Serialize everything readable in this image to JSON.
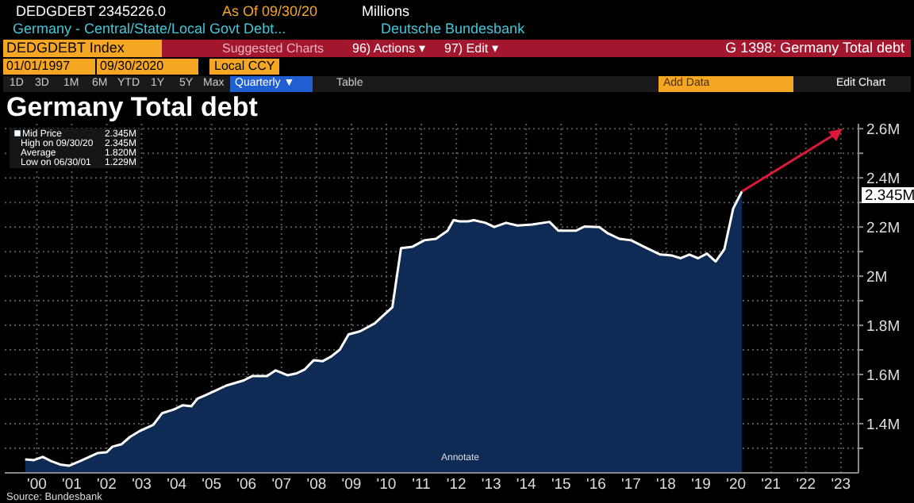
{
  "chart_data": {
    "type": "area",
    "title": "Germany Total debt",
    "x": [
      "2000-03",
      "2000-06",
      "2000-09",
      "2000-12",
      "2001-03",
      "2001-06",
      "2001-10",
      "2002-01",
      "2002-04",
      "2002-07",
      "2002-09",
      "2002-12",
      "2003-03",
      "2003-06",
      "2003-11",
      "2004-02",
      "2004-06",
      "2004-09",
      "2004-12",
      "2005-02",
      "2005-08",
      "2005-12",
      "2006-06",
      "2006-09",
      "2007-02",
      "2007-05",
      "2007-09",
      "2007-12",
      "2008-03",
      "2008-06",
      "2008-09",
      "2008-12",
      "2009-03",
      "2009-06",
      "2009-10",
      "2010-03",
      "2010-06",
      "2010-09",
      "2010-12",
      "2011-04",
      "2011-08",
      "2011-12",
      "2012-04",
      "2012-06",
      "2012-08",
      "2012-11",
      "2013-01",
      "2013-05",
      "2013-08",
      "2013-12",
      "2014-04",
      "2014-09",
      "2015-03",
      "2015-06",
      "2015-12",
      "2016-03",
      "2016-08",
      "2016-11",
      "2017-03",
      "2017-07",
      "2017-12",
      "2018-05",
      "2018-09",
      "2018-12",
      "2019-03",
      "2019-06",
      "2019-09",
      "2019-12",
      "2020-03",
      "2020-06",
      "2020-09"
    ],
    "series": [
      {
        "name": "Mid Price",
        "color": "#0d2b55",
        "values": [
          1.255,
          1.252,
          1.265,
          1.247,
          1.234,
          1.229,
          1.249,
          1.265,
          1.281,
          1.284,
          1.307,
          1.316,
          1.346,
          1.368,
          1.396,
          1.443,
          1.458,
          1.475,
          1.471,
          1.501,
          1.533,
          1.555,
          1.576,
          1.594,
          1.594,
          1.617,
          1.597,
          1.604,
          1.621,
          1.658,
          1.654,
          1.673,
          1.701,
          1.763,
          1.776,
          1.808,
          1.841,
          1.873,
          2.114,
          2.12,
          2.146,
          2.152,
          2.185,
          2.228,
          2.223,
          2.223,
          2.228,
          2.217,
          2.2,
          2.217,
          2.206,
          2.21,
          2.221,
          2.185,
          2.185,
          2.202,
          2.2,
          2.174,
          2.152,
          2.146,
          2.116,
          2.088,
          2.084,
          2.073,
          2.088,
          2.073,
          2.092,
          2.06,
          2.11,
          2.275,
          2.345
        ]
      }
    ],
    "xlim": [
      "1999-08",
      "2024-01"
    ],
    "xticks": [
      {
        "value": "2000-07",
        "label": "'00"
      },
      {
        "value": "2001-07",
        "label": "'01"
      },
      {
        "value": "2002-07",
        "label": "'02"
      },
      {
        "value": "2003-07",
        "label": "'03"
      },
      {
        "value": "2004-07",
        "label": "'04"
      },
      {
        "value": "2005-07",
        "label": "'05"
      },
      {
        "value": "2006-07",
        "label": "'06"
      },
      {
        "value": "2007-07",
        "label": "'07"
      },
      {
        "value": "2008-07",
        "label": "'08"
      },
      {
        "value": "2009-07",
        "label": "'09"
      },
      {
        "value": "2010-07",
        "label": "'10"
      },
      {
        "value": "2011-07",
        "label": "'11"
      },
      {
        "value": "2012-07",
        "label": "'12"
      },
      {
        "value": "2013-07",
        "label": "'13"
      },
      {
        "value": "2014-07",
        "label": "'14"
      },
      {
        "value": "2015-07",
        "label": "'15"
      },
      {
        "value": "2016-07",
        "label": "'16"
      },
      {
        "value": "2017-07",
        "label": "'17"
      },
      {
        "value": "2018-07",
        "label": "'18"
      },
      {
        "value": "2019-07",
        "label": "'19"
      },
      {
        "value": "2020-07",
        "label": "'20"
      },
      {
        "value": "2021-07",
        "label": "'21"
      },
      {
        "value": "2022-07",
        "label": "'22"
      },
      {
        "value": "2023-07",
        "label": "'23"
      }
    ],
    "ylim": [
      1.2,
      2.62
    ],
    "yticks": [
      {
        "value": 1.3,
        "label": null
      },
      {
        "value": 1.4,
        "label": "1.4M"
      },
      {
        "value": 1.5,
        "label": null
      },
      {
        "value": 1.6,
        "label": "1.6M"
      },
      {
        "value": 1.7,
        "label": null
      },
      {
        "value": 1.8,
        "label": "1.8M"
      },
      {
        "value": 1.9,
        "label": null
      },
      {
        "value": 2,
        "label": "2M"
      },
      {
        "value": 2.1,
        "label": null
      },
      {
        "value": 2.2,
        "label": "2.2M"
      },
      {
        "value": 2.3,
        "label": null
      },
      {
        "value": 2.4,
        "label": "2.4M"
      },
      {
        "value": 2.5,
        "label": null
      },
      {
        "value": 2.6,
        "label": "2.6M"
      }
    ],
    "grid": true,
    "legend": "top left",
    "annotations": [
      "DEDGDEBT",
      "2345226.0",
      "As Of 09/30/20",
      "Millions",
      "Germany - Central/State/Local Govt Debt...",
      "Deutsche Bundesbank",
      "DEDGDEBT Index",
      "Suggested Charts",
      "96) Actions ▾",
      "97) Edit ▾",
      "G 1398: Germany Total debt",
      "01/01/1997",
      "09/30/2020",
      "Local CCY",
      "1D",
      "3D",
      "1M",
      "6M",
      "YTD",
      "1Y",
      "5Y",
      "Max",
      "Quarterly ▼",
      "Table",
      "Add Data",
      "Edit Chart",
      "2.345M",
      "High on 09/30/20",
      "2.345M",
      "Average",
      "1.820M",
      "Low on 06/30/01",
      "1.229M",
      "Annotate",
      "Source: Bundesbank",
      "2.345M"
    ]
  }
}
